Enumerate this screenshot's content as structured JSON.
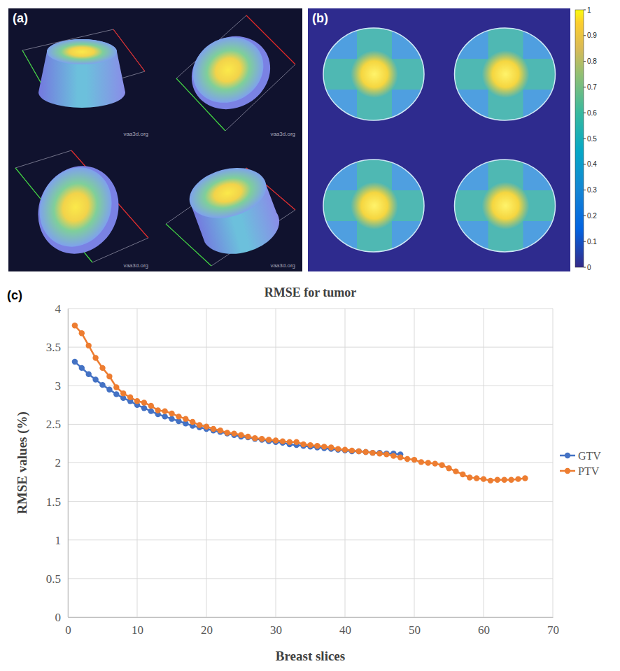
{
  "figure": {
    "panel_labels": [
      "(a)",
      "(b)",
      "(c)"
    ],
    "watermarks": [
      "vaa3d.org",
      "vaa3d.org",
      "vaa3d.org",
      "vaa3d.org"
    ],
    "colorbar": {
      "range": [
        0,
        1
      ],
      "ticks": [
        0,
        0.1,
        0.2,
        0.3,
        0.4,
        0.5,
        0.6,
        0.7,
        0.8,
        0.9,
        1
      ]
    }
  },
  "chart_data": {
    "type": "line",
    "title": "RMSE for tumor",
    "x_label": "Breast slices",
    "y_label": "RMSE values (%)",
    "x": [
      1,
      2,
      3,
      4,
      5,
      6,
      7,
      8,
      9,
      10,
      11,
      12,
      13,
      14,
      15,
      16,
      17,
      18,
      19,
      20,
      21,
      22,
      23,
      24,
      25,
      26,
      27,
      28,
      29,
      30,
      31,
      32,
      33,
      34,
      35,
      36,
      37,
      38,
      39,
      40,
      41,
      42,
      43,
      44,
      45,
      46,
      47,
      48,
      49,
      50,
      51,
      52,
      53,
      54,
      55,
      56,
      57,
      58,
      59,
      60,
      61,
      62,
      63,
      64,
      65,
      66
    ],
    "series": [
      {
        "name": "GTV",
        "color": "#4472c4",
        "marker": "circle",
        "line_style": "solid",
        "values": [
          3.31,
          3.23,
          3.15,
          3.08,
          3.01,
          2.95,
          2.89,
          2.84,
          2.8,
          2.75,
          2.71,
          2.67,
          2.63,
          2.6,
          2.57,
          2.54,
          2.51,
          2.48,
          2.46,
          2.44,
          2.42,
          2.4,
          2.38,
          2.36,
          2.34,
          2.33,
          2.31,
          2.3,
          2.28,
          2.27,
          2.26,
          2.24,
          2.23,
          2.22,
          2.21,
          2.2,
          2.19,
          2.18,
          2.17,
          2.16,
          2.15,
          2.15,
          2.14,
          2.13,
          2.13,
          2.12,
          2.12,
          2.11,
          null,
          null,
          null,
          null,
          null,
          null,
          null,
          null,
          null,
          null,
          null,
          null,
          null,
          null,
          null,
          null,
          null,
          null
        ]
      },
      {
        "name": "PTV",
        "color": "#ed7d31",
        "marker": "circle",
        "line_style": "solid",
        "values": [
          3.78,
          3.68,
          3.52,
          3.36,
          3.23,
          3.12,
          2.98,
          2.9,
          2.85,
          2.8,
          2.78,
          2.74,
          2.68,
          2.67,
          2.64,
          2.6,
          2.57,
          2.53,
          2.49,
          2.47,
          2.44,
          2.42,
          2.39,
          2.38,
          2.36,
          2.34,
          2.32,
          2.31,
          2.3,
          2.29,
          2.28,
          2.27,
          2.27,
          2.24,
          2.23,
          2.22,
          2.21,
          2.2,
          2.18,
          2.17,
          2.16,
          2.15,
          2.14,
          2.13,
          2.12,
          2.11,
          2.09,
          2.07,
          2.05,
          2.04,
          2.01,
          2.0,
          1.99,
          1.97,
          1.93,
          1.89,
          1.85,
          1.81,
          1.8,
          1.79,
          1.77,
          1.78,
          1.78,
          1.78,
          1.79,
          1.8
        ]
      }
    ],
    "xlim": [
      0,
      70
    ],
    "xticks": [
      0,
      10,
      20,
      30,
      40,
      50,
      60,
      70
    ],
    "ylim": [
      0,
      4
    ],
    "yticks": [
      0,
      0.5,
      1,
      1.5,
      2,
      2.5,
      3,
      3.5,
      4
    ],
    "grid": true,
    "legend": "right"
  }
}
